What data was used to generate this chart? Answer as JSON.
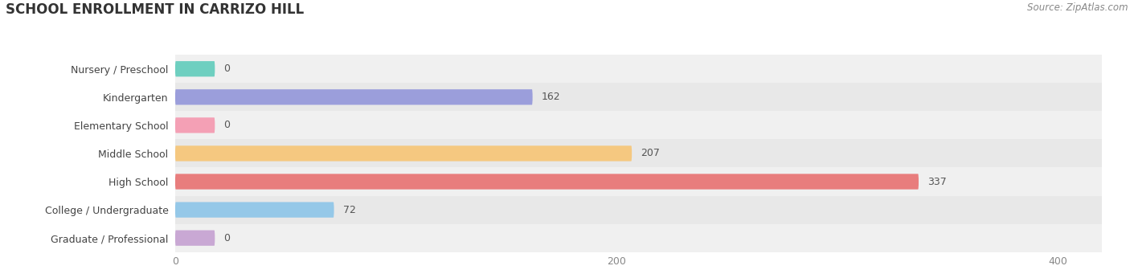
{
  "title": "School Enrollment in Carrizo Hill",
  "source": "Source: ZipAtlas.com",
  "categories": [
    "Nursery / Preschool",
    "Kindergarten",
    "Elementary School",
    "Middle School",
    "High School",
    "College / Undergraduate",
    "Graduate / Professional"
  ],
  "values": [
    0,
    162,
    0,
    207,
    337,
    72,
    0
  ],
  "bar_colors": [
    "#6ecfc0",
    "#9b9edb",
    "#f4a0b5",
    "#f5c880",
    "#e87d7d",
    "#95c8e8",
    "#c9a8d4"
  ],
  "row_bg_colors": [
    "#f0f0f0",
    "#e8e8e8"
  ],
  "xlim": [
    0,
    420
  ],
  "xticks": [
    0,
    200,
    400
  ],
  "title_fontsize": 12,
  "label_fontsize": 9,
  "value_fontsize": 9,
  "source_fontsize": 8.5,
  "background_color": "#ffffff",
  "bar_height": 0.55,
  "stub_value": 18
}
